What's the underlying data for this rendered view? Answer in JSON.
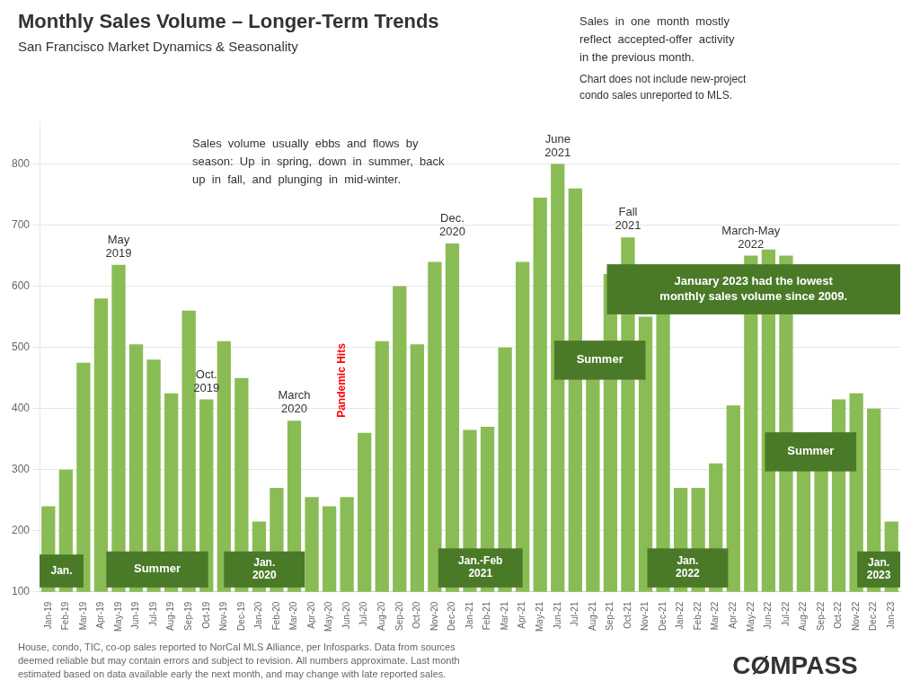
{
  "chart_data": {
    "type": "bar",
    "title": "Monthly Sales Volume – Longer-Term Trends",
    "subtitle": "San Francisco Market Dynamics & Seasonality",
    "categories": [
      "Jan-19",
      "Feb-19",
      "Mar-19",
      "Apr-19",
      "May-19",
      "Jun-19",
      "Jul-19",
      "Aug-19",
      "Sep-19",
      "Oct-19",
      "Nov-19",
      "Dec-19",
      "Jan-20",
      "Feb-20",
      "Mar-20",
      "Apr-20",
      "May-20",
      "Jun-20",
      "Jul-20",
      "Aug-20",
      "Sep-20",
      "Oct-20",
      "Nov-20",
      "Dec-20",
      "Jan-21",
      "Feb-21",
      "Mar-21",
      "Apr-21",
      "May-21",
      "Jun-21",
      "Jul-21",
      "Aug-21",
      "Sep-21",
      "Oct-21",
      "Nov-21",
      "Dec-21",
      "Jan-22",
      "Feb-22",
      "Mar-22",
      "Apr-22",
      "May-22",
      "Jun-22",
      "Jul-22",
      "Aug-22",
      "Sep-22",
      "Oct-22",
      "Nov-22",
      "Dec-22",
      "Jan-23"
    ],
    "values": [
      240,
      300,
      475,
      580,
      635,
      505,
      480,
      425,
      560,
      415,
      510,
      450,
      215,
      270,
      380,
      255,
      240,
      255,
      360,
      510,
      600,
      505,
      640,
      670,
      365,
      370,
      500,
      640,
      745,
      800,
      760,
      510,
      620,
      680,
      550,
      560,
      270,
      270,
      310,
      405,
      650,
      660,
      650,
      350,
      360,
      415,
      425,
      400,
      215
    ],
    "color": "#8abc55",
    "ylim": [
      100,
      870
    ],
    "yticks": [
      100,
      200,
      300,
      400,
      500,
      600,
      700,
      800
    ],
    "grid": true,
    "annotations": [
      {
        "text": "Sales  in  one  month  mostly\nreflect  accepted-offer  activity"
      },
      {
        "text": "in the previous month."
      },
      {
        "text": "Chart does not include new-project\ncondo sales unreported to MLS."
      },
      {
        "text": "Sales  volume  usually  ebbs  and  flows  by\nseason:  Up  in  spring,  down  in  summer,  back\nup  in  fall,  and  plunging  in  mid-winter."
      },
      {
        "text": "Pandemic Hits",
        "color": "red"
      },
      {
        "text": "January 2023 had the lowest\nmonthly sales volume since 2009.",
        "color": "#4a7a28"
      },
      {
        "text": "Jan.",
        "color": "#4a7a28"
      },
      {
        "text": "Summer",
        "color": "#4a7a28"
      },
      {
        "text": "Jan.\n2020",
        "color": "#4a7a28"
      },
      {
        "text": "Jan.-Feb\n2021",
        "color": "#4a7a28"
      },
      {
        "text": "Summer",
        "color": "#4a7a28"
      },
      {
        "text": "Jan.\n2022",
        "color": "#4a7a28"
      },
      {
        "text": "Summer",
        "color": "#4a7a28"
      },
      {
        "text": "Jan.\n2023",
        "color": "#4a7a28"
      },
      {
        "text": "May\n2019"
      },
      {
        "text": "Oct.\n2019"
      },
      {
        "text": "March\n2020"
      },
      {
        "text": "Dec.\n2020"
      },
      {
        "text": "June\n2021"
      },
      {
        "text": "Fall\n2021"
      },
      {
        "text": "March-May\n2022"
      },
      {
        "text": "House, condo, TIC, co-op sales reported to NorCal MLS Alliance, per Infosparks. Data from sources\ndeemed reliable but may contain errors and subject to revision. All numbers approximate. Last month\nestimated based on data available early the next month, and may change with late reported sales."
      },
      {
        "text": "CØMPASS"
      }
    ]
  }
}
